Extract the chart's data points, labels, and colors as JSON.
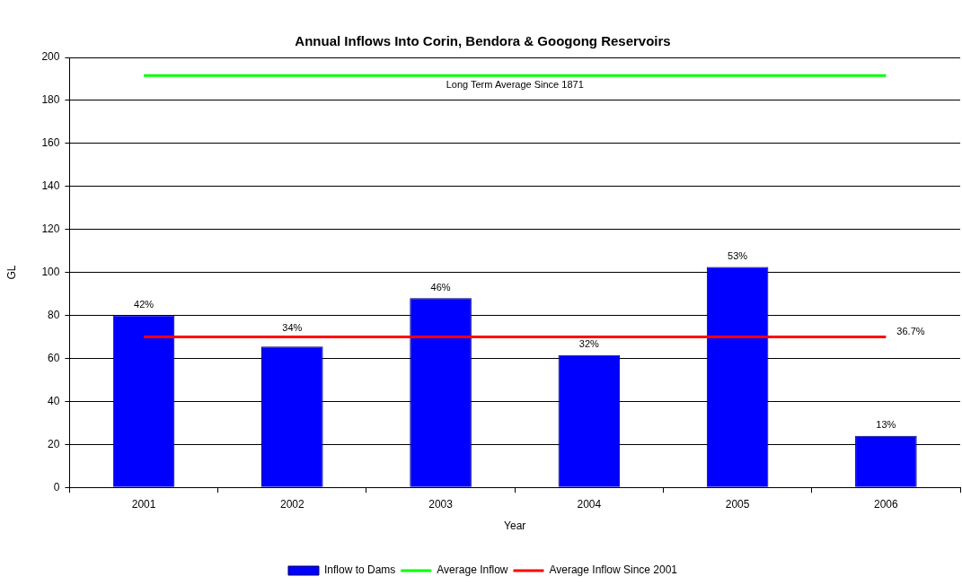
{
  "chart_data": {
    "type": "bar",
    "title": "Annual Inflows Into Corin, Bendora & Googong Reservoirs",
    "xlabel": "Year",
    "ylabel": "GL",
    "categories": [
      "2001",
      "2002",
      "2003",
      "2004",
      "2005",
      "2006"
    ],
    "series": [
      {
        "name": "Inflow to Dams",
        "color": "#0000ff",
        "values": [
          80,
          65.5,
          88,
          61.5,
          102.5,
          24
        ]
      },
      {
        "name": "Average Inflow",
        "type": "line",
        "color": "#00ff00",
        "values": [
          191.5,
          191.5,
          191.5,
          191.5,
          191.5,
          191.5
        ]
      },
      {
        "name": "Average Inflow Since 2001",
        "type": "line",
        "color": "#ff0000",
        "values": [
          70,
          70,
          70,
          70,
          70,
          70
        ]
      }
    ],
    "ylim": [
      0,
      200
    ],
    "yticks": [
      0,
      20,
      40,
      60,
      80,
      100,
      120,
      140,
      160,
      180,
      200
    ],
    "grid": "y",
    "legend": "bottom",
    "marker": "none",
    "annotations": [
      {
        "text": "Long Term Average Since 1871",
        "y": 191.5
      },
      {
        "text": "42%",
        "x": "2001",
        "y": 80
      },
      {
        "text": "34%",
        "x": "2002",
        "y": 65.5
      },
      {
        "text": "46%",
        "x": "2003",
        "y": 88
      },
      {
        "text": "32%",
        "x": "2004",
        "y": 61.5
      },
      {
        "text": "53%",
        "x": "2005",
        "y": 102.5
      },
      {
        "text": "13%",
        "x": "2006",
        "y": 24
      },
      {
        "text": "36.7%",
        "x": "2006",
        "y": 70
      }
    ]
  }
}
